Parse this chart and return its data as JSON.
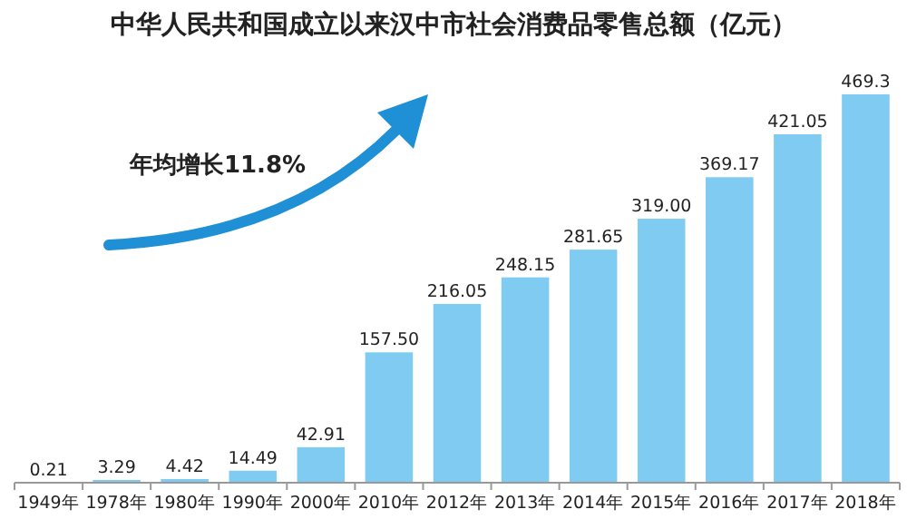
{
  "chart_data": {
    "type": "bar",
    "title": "中华人民共和国成立以来汉中市社会消费品零售总额（亿元）",
    "categories": [
      "1949年",
      "1978年",
      "1980年",
      "1990年",
      "2000年",
      "2010年",
      "2012年",
      "2013年",
      "2014年",
      "2015年",
      "2016年",
      "2017年",
      "2018年"
    ],
    "values": [
      0.21,
      3.29,
      4.42,
      14.49,
      42.91,
      157.5,
      216.05,
      248.15,
      281.65,
      319,
      369.17,
      421.05,
      469.3
    ],
    "value_labels": [
      "0.21",
      "3.29",
      "4.42",
      "14.49",
      "42.91",
      "157.50",
      "216.05",
      "248.15",
      "281.65",
      "319.00",
      "369.17",
      "421.05",
      "469.3"
    ],
    "color": "#7fcbf2",
    "annotations": [
      "年均增长11.8%"
    ]
  }
}
